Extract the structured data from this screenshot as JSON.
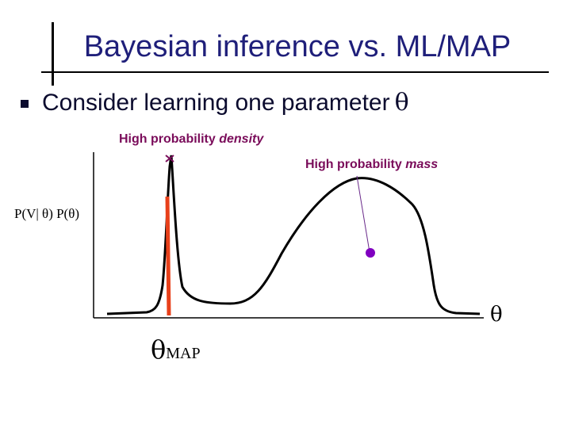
{
  "slide": {
    "title": "Bayesian inference vs. ML/MAP",
    "bullet": {
      "text": "Consider learning one parameter",
      "symbol": "θ"
    }
  },
  "diagram": {
    "y_axis_label": "P(V| θ) P(θ)",
    "x_axis_label": "θ",
    "annotations": {
      "density_prefix": "High probability ",
      "density_emphasis": "density",
      "mass_prefix": "High probability ",
      "mass_emphasis": "mass"
    },
    "map_label": {
      "symbol": "θ",
      "subscript": "MAP"
    },
    "colors": {
      "title": "#1f1f7a",
      "annotation_text": "#7a0c5a",
      "map_line": "#e8401a",
      "mass_marker": "#8000c0",
      "curve": "#000000"
    }
  }
}
